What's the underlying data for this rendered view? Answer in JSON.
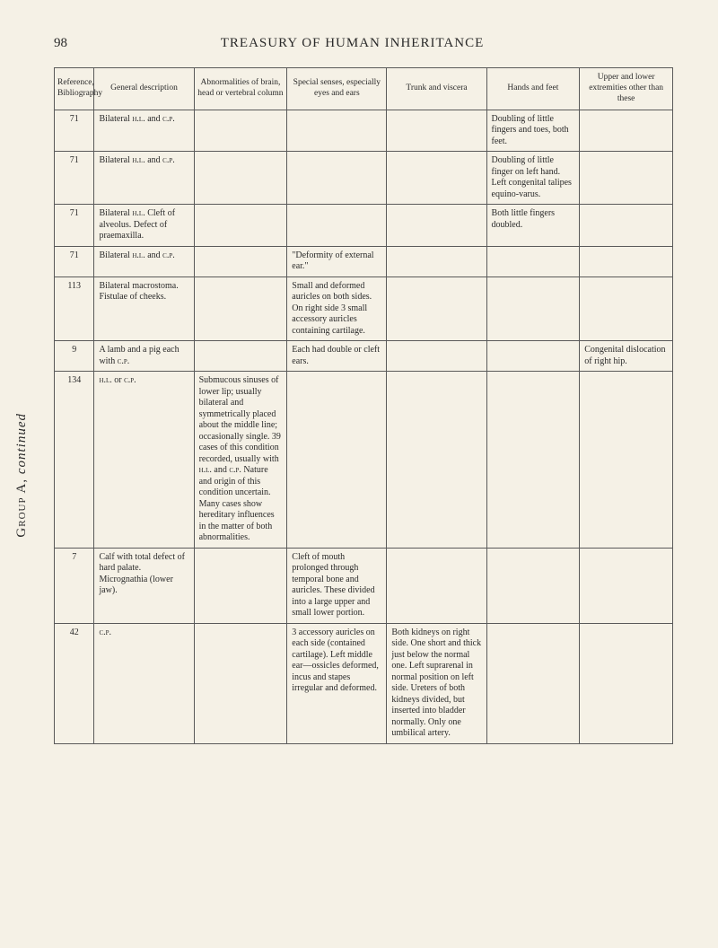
{
  "page_number": "98",
  "page_title": "TREASURY OF HUMAN INHERITANCE",
  "group_label_parts": {
    "pre": "G",
    "sc": "roup",
    "letter": " A, ",
    "it": "continued"
  },
  "columns": [
    "Reference, Bibliography",
    "General description",
    "Abnormalities of brain, head or vertebral column",
    "Special senses, especially eyes and ears",
    "Trunk and viscera",
    "Hands and feet",
    "Upper and lower extremities other than these"
  ],
  "rows": [
    {
      "ref": "71",
      "gen": "Bilateral H.L. and C.P.",
      "brain": "",
      "senses": "",
      "trunk": "",
      "hands": "Doubling of little fingers and toes, both feet.",
      "upper": ""
    },
    {
      "ref": "71",
      "gen": "Bilateral H.L. and C.P.",
      "brain": "",
      "senses": "",
      "trunk": "",
      "hands": "Doubling of little finger on left hand. Left congenital talipes equino-varus.",
      "upper": ""
    },
    {
      "ref": "71",
      "gen": "Bilateral H.L. Cleft of alveolus. Defect of praemaxilla.",
      "brain": "",
      "senses": "",
      "trunk": "",
      "hands": "Both little fingers doubled.",
      "upper": ""
    },
    {
      "ref": "71",
      "gen": "Bilateral H.L. and C.P.",
      "brain": "",
      "senses": "\"Deformity of external ear.\"",
      "trunk": "",
      "hands": "",
      "upper": ""
    },
    {
      "ref": "113",
      "gen": "Bilateral macrostoma. Fistulae of cheeks.",
      "brain": "",
      "senses": "Small and deformed auricles on both sides. On right side 3 small accessory auricles containing cartilage.",
      "trunk": "",
      "hands": "",
      "upper": ""
    },
    {
      "ref": "9",
      "gen": "A lamb and a pig each with C.P.",
      "brain": "",
      "senses": "Each had double or cleft ears.",
      "trunk": "",
      "hands": "",
      "upper": "Congenital dislocation of right hip."
    },
    {
      "ref": "134",
      "gen": "H.L. or C.P.",
      "brain": "Submucous sinuses of lower lip; usually bilateral and symmetrically placed about the middle line; occasionally single. 39 cases of this condition recorded, usually with H.L. and C.P. Nature and origin of this condition uncertain. Many cases show hereditary influences in the matter of both abnormalities.",
      "senses": "",
      "trunk": "",
      "hands": "",
      "upper": ""
    },
    {
      "ref": "7",
      "gen": "Calf with total defect of hard palate. Micrognathia (lower jaw).",
      "brain": "",
      "senses": "Cleft of mouth prolonged through temporal bone and auricles. These divided into a large upper and small lower portion.",
      "trunk": "",
      "hands": "",
      "upper": ""
    },
    {
      "ref": "42",
      "gen": "C.P.",
      "brain": "",
      "senses": "3 accessory auricles on each side (contained cartilage). Left middle ear—ossicles deformed, incus and stapes irregular and deformed.",
      "trunk": "Both kidneys on right side. One short and thick just below the normal one. Left suprarenal in normal position on left side. Ureters of both kidneys divided, but inserted into bladder normally. Only one umbilical artery.",
      "hands": "",
      "upper": ""
    }
  ]
}
